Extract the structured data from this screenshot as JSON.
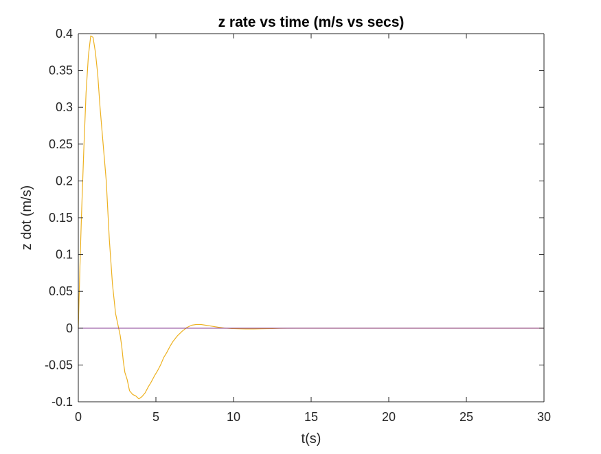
{
  "chart_data": {
    "type": "line",
    "title": "z rate vs time (m/s vs secs)",
    "xlabel": "t(s)",
    "ylabel": "z dot (m/s)",
    "xlim": [
      0,
      30
    ],
    "ylim": [
      -0.1,
      0.4
    ],
    "x_ticks": [
      0,
      5,
      10,
      15,
      20,
      25,
      30
    ],
    "y_ticks": [
      -0.1,
      -0.05,
      0,
      0.05,
      0.1,
      0.15,
      0.2,
      0.25,
      0.3,
      0.35,
      0.4
    ],
    "x_tick_labels": [
      "0",
      "5",
      "10",
      "15",
      "20",
      "25",
      "30"
    ],
    "y_tick_labels": [
      "-0.1",
      "-0.05",
      "0",
      "0.05",
      "0.1",
      "0.15",
      "0.2",
      "0.25",
      "0.3",
      "0.35",
      "0.4"
    ],
    "grid": false,
    "box": true,
    "legend": "none",
    "series": [
      {
        "color": "#EDB120",
        "x": [
          0,
          0.1,
          0.2,
          0.35,
          0.5,
          0.65,
          0.8,
          0.95,
          1.1,
          1.25,
          1.4,
          1.6,
          1.8,
          2.0,
          2.2,
          2.4,
          2.55,
          2.7,
          2.8,
          2.9,
          3.0,
          3.15,
          3.3,
          3.5,
          3.7,
          3.9,
          4.1,
          4.3,
          4.5,
          4.7,
          4.9,
          5.1,
          5.3,
          5.5,
          5.7,
          5.9,
          6.1,
          6.4,
          6.7,
          7.0,
          7.3,
          7.6,
          7.9,
          8.2,
          8.5,
          8.8,
          9.1,
          9.5,
          9.9,
          10.3,
          10.8,
          11.3,
          11.8,
          12.5,
          13.0,
          14.0,
          15.0,
          17.5,
          20.0,
          25.0,
          30.0
        ],
        "y": [
          0.0,
          0.08,
          0.15,
          0.24,
          0.32,
          0.37,
          0.397,
          0.395,
          0.375,
          0.345,
          0.3,
          0.25,
          0.2,
          0.12,
          0.06,
          0.02,
          0.005,
          -0.01,
          -0.025,
          -0.045,
          -0.06,
          -0.07,
          -0.085,
          -0.09,
          -0.092,
          -0.096,
          -0.093,
          -0.088,
          -0.08,
          -0.073,
          -0.065,
          -0.058,
          -0.05,
          -0.04,
          -0.033,
          -0.025,
          -0.018,
          -0.01,
          -0.004,
          0.001,
          0.004,
          0.005,
          0.005,
          0.004,
          0.003,
          0.002,
          0.001,
          0.0,
          -0.0005,
          -0.0008,
          -0.001,
          -0.001,
          -0.0008,
          -0.0005,
          -0.0002,
          0.0,
          0.0,
          0.0,
          0.0,
          0.0,
          0.0
        ]
      },
      {
        "color": "#7E2F8E",
        "x": [
          0,
          30
        ],
        "y": [
          0,
          0
        ]
      }
    ]
  }
}
